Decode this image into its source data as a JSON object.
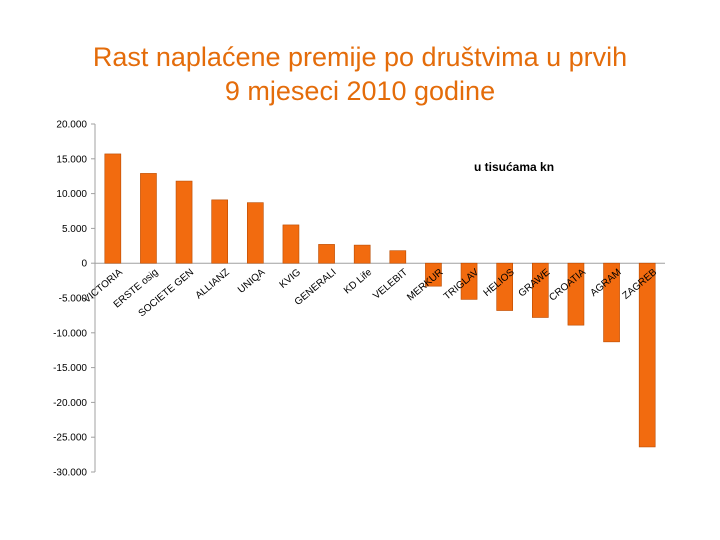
{
  "title_line1": "Rast naplaćene premije po društvima u prvih",
  "title_line2": "9 mjeseci 2010 godine",
  "colors": {
    "title": "#e46c0a",
    "bar": "#f26b0f",
    "bar_edge": "#b94a00",
    "axis": "#a0a0a0"
  },
  "chart_data": {
    "type": "bar",
    "title": "Rast naplaćene premije po društvima u prvih 9 mjeseci 2010 godine",
    "annotation": "u tisućama kn",
    "xlabel": "",
    "ylabel": "",
    "ylim": [
      -30000,
      20000
    ],
    "yticks": [
      20000,
      15000,
      10000,
      5000,
      0,
      -5000,
      -10000,
      -15000,
      -20000,
      -25000,
      -30000
    ],
    "ytick_labels": [
      "20.000",
      "15.000",
      "10.000",
      "5.000",
      "0",
      "-5.000",
      "-10.000",
      "-15.000",
      "-20.000",
      "-25.000",
      "-30.000"
    ],
    "grid": false,
    "categories": [
      "VICTORIA",
      "ERSTE osig",
      "SOCIETE GEN",
      "ALLIANZ",
      "UNIQA",
      "KVIG",
      "GENERALI",
      "KD Life",
      "VELEBIT",
      "MERKUR",
      "TRIGLAV",
      "HELIOS",
      "GRAWE",
      "CROATIA",
      "AGRAM",
      "ZAGREB"
    ],
    "values": [
      15700,
      12900,
      11800,
      9100,
      8700,
      5500,
      2700,
      2600,
      1800,
      -3300,
      -5200,
      -6800,
      -7800,
      -8900,
      -11300,
      -26400
    ]
  }
}
